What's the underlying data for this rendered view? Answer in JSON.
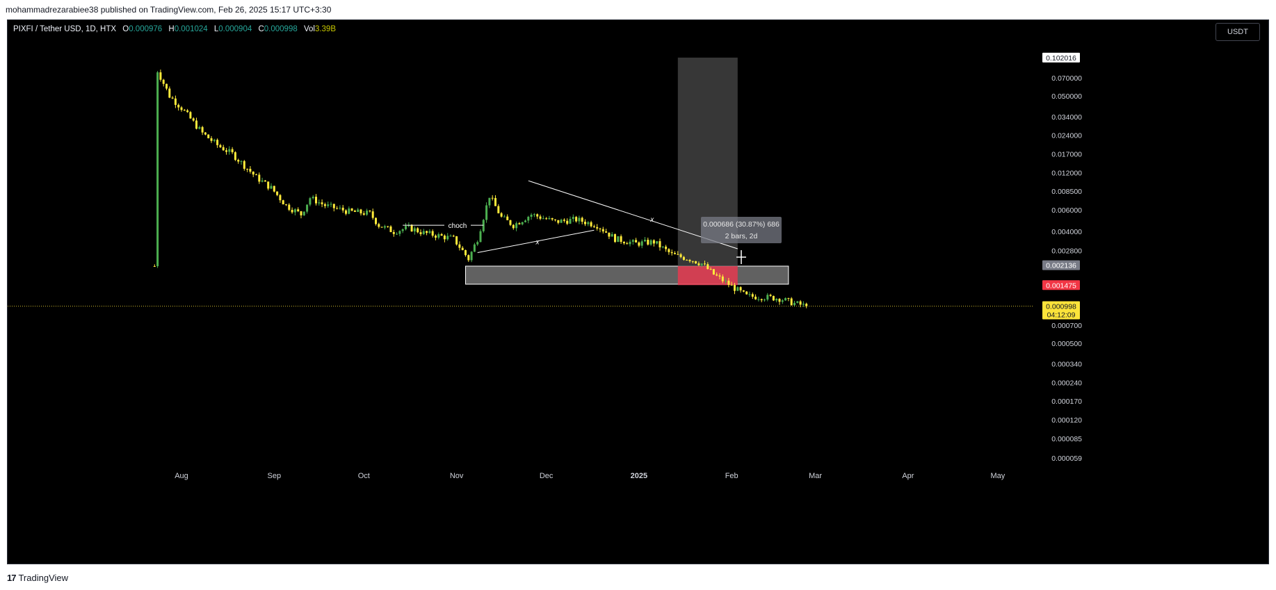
{
  "header": {
    "published": "mohammadrezarabiee38 published on TradingView.com, Feb 26, 2025 15:17 UTC+3:30"
  },
  "legend": {
    "symbol": "PIXFI / Tether USD, 1D, HTX",
    "open_label": "O",
    "open": "0.000976",
    "high_label": "H",
    "high": "0.001024",
    "low_label": "L",
    "low": "0.000904",
    "close_label": "C",
    "close": "0.000998",
    "vol_label": "Vol",
    "vol": "3.39B"
  },
  "quote_currency": "USDT",
  "footer": {
    "brand": "TradingView",
    "logo": "17"
  },
  "colors": {
    "background": "#000000",
    "up": "#4caf50",
    "down": "#ffeb3b",
    "zone": "#ffffff",
    "target": "#4a4a4a",
    "stop": "#e53950",
    "last_price": "#fbe33a"
  },
  "chart_data": {
    "type": "candlestick",
    "scale": "log",
    "symbol": "PIXFI / Tether USD",
    "interval": "1D",
    "exchange": "HTX",
    "ylim": [
      5.9e-05,
      0.15
    ],
    "x_ticks": [
      "Aug",
      "Sep",
      "Oct",
      "Nov",
      "Dec",
      "2025",
      "Feb",
      "Mar",
      "Apr",
      "May"
    ],
    "y_ticks": [
      {
        "value": 0.07,
        "label": "0.070000"
      },
      {
        "value": 0.05,
        "label": "0.050000"
      },
      {
        "value": 0.034,
        "label": "0.034000"
      },
      {
        "value": 0.024,
        "label": "0.024000"
      },
      {
        "value": 0.017,
        "label": "0.017000"
      },
      {
        "value": 0.012,
        "label": "0.012000"
      },
      {
        "value": 0.0085,
        "label": "0.008500"
      },
      {
        "value": 0.006,
        "label": "0.006000"
      },
      {
        "value": 0.004,
        "label": "0.004000"
      },
      {
        "value": 0.0028,
        "label": "0.002800"
      },
      {
        "value": 0.0007,
        "label": "0.000700"
      },
      {
        "value": 0.0005,
        "label": "0.000500"
      },
      {
        "value": 0.00034,
        "label": "0.000340"
      },
      {
        "value": 0.00024,
        "label": "0.000240"
      },
      {
        "value": 0.00017,
        "label": "0.000170"
      },
      {
        "value": 0.00012,
        "label": "0.000120"
      },
      {
        "value": 8.5e-05,
        "label": "0.000085"
      },
      {
        "value": 5.9e-05,
        "label": "0.000059"
      }
    ],
    "price_badges": [
      {
        "value": 0.102016,
        "label": "0.102016",
        "style": "white"
      },
      {
        "value": 0.002136,
        "label": "0.002136",
        "style": "gray"
      },
      {
        "value": 0.001475,
        "label": "0.001475",
        "style": "red"
      },
      {
        "value": 0.000998,
        "label": "0.000998",
        "sublabel": "04:12:09",
        "style": "yellow"
      }
    ],
    "last_price": 0.000998,
    "countdown": "04:12:09",
    "price_path": [
      [
        "Jul 23",
        0.0021
      ],
      [
        "Jul 24",
        0.08
      ],
      [
        "Jul 28",
        0.05
      ],
      [
        "Aug 1",
        0.04
      ],
      [
        "Aug 8",
        0.025
      ],
      [
        "Aug 13",
        0.02
      ],
      [
        "Aug 18",
        0.017
      ],
      [
        "Aug 26",
        0.011
      ],
      [
        "Aug 31",
        0.009
      ],
      [
        "Sep 5",
        0.0065
      ],
      [
        "Sep 10",
        0.0055
      ],
      [
        "Sep 13",
        0.0075
      ],
      [
        "Sep 18",
        0.0065
      ],
      [
        "Sep 26",
        0.0058
      ],
      [
        "Oct 3",
        0.0056
      ],
      [
        "Oct 6",
        0.0045
      ],
      [
        "Oct 11",
        0.004
      ],
      [
        "Oct 16",
        0.0043
      ],
      [
        "Oct 21",
        0.0039
      ],
      [
        "Oct 26",
        0.0037
      ],
      [
        "Oct 31",
        0.0035
      ],
      [
        "Nov 5",
        0.0024
      ],
      [
        "Nov 8",
        0.0035
      ],
      [
        "Nov 12",
        0.0078
      ],
      [
        "Nov 16",
        0.0052
      ],
      [
        "Nov 20",
        0.0045
      ],
      [
        "Nov 26",
        0.0055
      ],
      [
        "Dec 4",
        0.0048
      ],
      [
        "Dec 11",
        0.005
      ],
      [
        "Dec 18",
        0.0045
      ],
      [
        "Dec 24",
        0.0035
      ],
      [
        "Dec 31",
        0.0032
      ],
      [
        "Jan 6",
        0.0033
      ],
      [
        "Jan 12",
        0.0026
      ],
      [
        "Jan 18",
        0.0024
      ],
      [
        "Jan 22",
        0.0022
      ],
      [
        "Jan 26",
        0.0018
      ],
      [
        "Jan 31",
        0.0015
      ],
      [
        "Feb 6",
        0.0012
      ],
      [
        "Feb 12",
        0.00118
      ],
      [
        "Feb 17",
        0.00115
      ],
      [
        "Feb 22",
        0.00105
      ],
      [
        "Feb 26",
        0.000998
      ]
    ],
    "annotations": {
      "choch_label": "choch",
      "trendline_label": "x",
      "wedge_label": "x",
      "measure_line1": "0.000686 (30.87%) 686",
      "measure_line2": "2 bars, 2d",
      "zone_bottom": 0.0015,
      "zone_top": 0.0021,
      "position_entry": 0.0021,
      "position_target": 0.102016,
      "position_stop": 0.001475
    }
  }
}
